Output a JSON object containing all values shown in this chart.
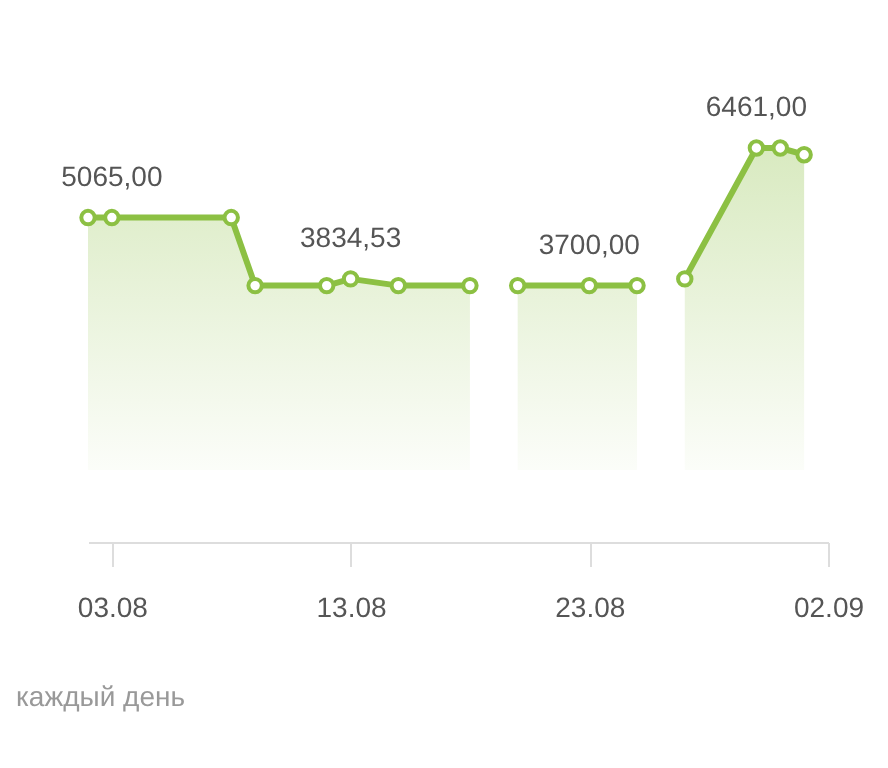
{
  "chart_data": {
    "type": "area",
    "x": [
      "--08-02",
      "--08-03",
      "--08-08",
      "--08-09",
      "--08-12",
      "--08-13",
      "--08-15",
      "--08-18",
      "--08-19",
      "--08-20",
      "--08-23",
      "--08-25",
      "--08-26",
      "--08-27",
      "--08-30",
      "--08-31",
      "--09-01"
    ],
    "series": [
      {
        "color": "#8cc043",
        "values": [
          5065,
          5065,
          5065,
          3700,
          3700,
          3834.53,
          3700,
          3700,
          null,
          3700,
          3700,
          3700,
          null,
          3834.53,
          6461,
          6461,
          6326
        ],
        "value_labels": [
          null,
          "5065,00",
          null,
          null,
          null,
          "3834,53",
          null,
          null,
          null,
          null,
          "3700,00",
          null,
          null,
          null,
          "6461,00",
          null,
          null
        ]
      }
    ],
    "xlim": [
      "--08-02",
      "--09-02"
    ],
    "xticks": [
      {
        "value": "--08-03",
        "label": "03.08"
      },
      {
        "value": "--08-13",
        "label": "13.08"
      },
      {
        "value": "--08-23",
        "label": "23.08"
      },
      {
        "value": "--09-02",
        "label": "02.09"
      }
    ],
    "tick_labels": "x",
    "grid": false,
    "marker": "circle",
    "line_style": "solid",
    "annotations": [
      "каждый день"
    ]
  }
}
